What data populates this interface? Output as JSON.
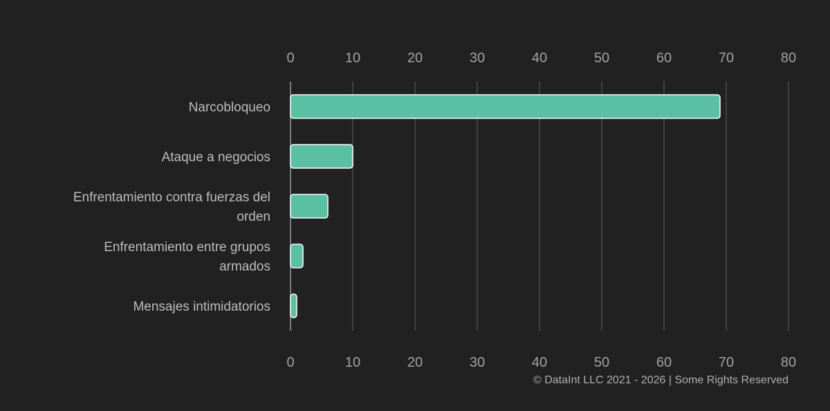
{
  "chart_data": {
    "type": "bar",
    "orientation": "horizontal",
    "categories": [
      [
        "Narcobloqueo"
      ],
      [
        "Ataque a negocios"
      ],
      [
        "Enfrentamiento contra fuerzas del",
        "orden"
      ],
      [
        "Enfrentamiento entre grupos",
        "armados"
      ],
      [
        "Mensajes intimidatorios"
      ]
    ],
    "values": [
      69,
      10,
      6,
      2,
      1
    ],
    "xlim": [
      0,
      80
    ],
    "ticks": [
      0,
      10,
      20,
      30,
      40,
      50,
      60,
      70,
      80
    ],
    "grid": true,
    "axis_labels_top_and_bottom": true,
    "bar_color": "#5bbfa3",
    "bar_stroke": "#ffffff"
  },
  "credit": "© DataInt LLC 2021 - 2026 | Some Rights Reserved"
}
